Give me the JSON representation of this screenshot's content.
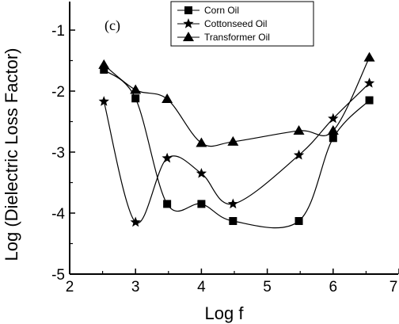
{
  "chart_data": {
    "type": "line",
    "panel_label": "(c)",
    "xlabel": "Log f",
    "ylabel": "Log (Dielectric Loss  Factor)",
    "xlim": [
      2,
      7
    ],
    "ylim": [
      -5,
      -1
    ],
    "xticks": [
      2,
      3,
      4,
      5,
      6,
      7
    ],
    "yticks": [
      -5,
      -4,
      -3,
      -2,
      -1
    ],
    "xtick_labels": [
      "2",
      "3",
      "4",
      "5",
      "6",
      "7"
    ],
    "ytick_labels": [
      "-5",
      "-4",
      "-3",
      "-2",
      "-1"
    ],
    "grid": false,
    "legend_position": "top-right",
    "series": [
      {
        "name": "Corn Oil",
        "marker": "square",
        "x": [
          2.52,
          3.0,
          3.48,
          4.0,
          4.48,
          5.48,
          6.0,
          6.55
        ],
        "y": [
          -1.65,
          -2.12,
          -3.85,
          -3.85,
          -4.13,
          -4.13,
          -2.77,
          -2.15
        ]
      },
      {
        "name": "Cottonseed  Oil",
        "marker": "star",
        "x": [
          2.52,
          3.0,
          3.48,
          4.0,
          4.48,
          5.48,
          6.0,
          6.55
        ],
        "y": [
          -2.17,
          -4.15,
          -3.1,
          -3.35,
          -3.85,
          -3.05,
          -2.45,
          -1.87
        ]
      },
      {
        "name": "Transformer  Oil",
        "marker": "triangle",
        "x": [
          2.52,
          3.0,
          3.48,
          4.0,
          4.48,
          5.48,
          6.0,
          6.55
        ],
        "y": [
          -1.57,
          -1.98,
          -2.13,
          -2.85,
          -2.83,
          -2.65,
          -2.65,
          -1.45
        ]
      }
    ]
  }
}
